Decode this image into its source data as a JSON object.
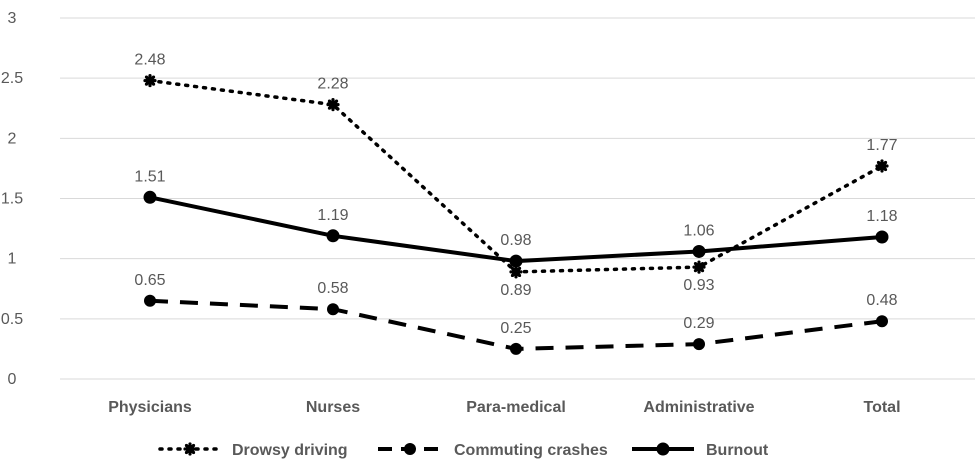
{
  "chart_data": {
    "type": "line",
    "title": "",
    "xlabel": "",
    "ylabel": "",
    "categories": [
      "Physicians",
      "Nurses",
      "Para-medical",
      "Administrative",
      "Total"
    ],
    "ylim": [
      0,
      3
    ],
    "yticks": [
      "0",
      "0.5",
      "1",
      "1.5",
      "2",
      "2.5",
      "3"
    ],
    "grid": true,
    "legend_position": "bottom",
    "series": [
      {
        "name": "Drowsy driving",
        "style": "dotted",
        "marker": "star",
        "color": "#000000",
        "values": [
          2.48,
          2.28,
          0.89,
          0.93,
          1.77
        ],
        "labels": [
          "2.48",
          "2.28",
          "0.89",
          "0.93",
          "1.77"
        ],
        "label_pos": [
          "above",
          "above",
          "below",
          "below",
          "above"
        ]
      },
      {
        "name": "Commuting crashes",
        "style": "dashed",
        "marker": "circle-half",
        "color": "#000000",
        "values": [
          0.65,
          0.58,
          0.25,
          0.29,
          0.48
        ],
        "labels": [
          "0.65",
          "0.58",
          "0.25",
          "0.29",
          "0.48"
        ],
        "label_pos": [
          "above",
          "above",
          "above",
          "above",
          "above"
        ]
      },
      {
        "name": "Burnout",
        "style": "solid",
        "marker": "circle",
        "color": "#000000",
        "values": [
          1.51,
          1.19,
          0.98,
          1.06,
          1.18
        ],
        "labels": [
          "1.51",
          "1.19",
          "0.98",
          "1.06",
          "1.18"
        ],
        "label_pos": [
          "above",
          "above",
          "above",
          "above",
          "above"
        ]
      }
    ]
  }
}
